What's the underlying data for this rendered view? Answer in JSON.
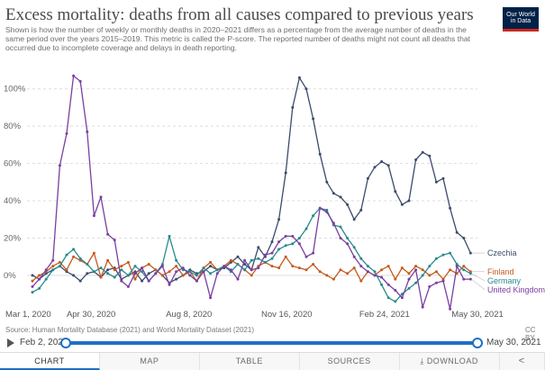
{
  "title": "Excess mortality: deaths from all causes compared to previous years",
  "subtitle": "Shown is how the number of weekly or monthly deaths in 2020–2021 differs as a percentage from the average number of deaths in the same period over the years 2015–2019. This metric is called the P-score. The reported number of deaths might not count all deaths that occurred due to incomplete coverage and delays in death reporting.",
  "logo": {
    "line1": "Our World",
    "line2": "in Data"
  },
  "source": "Source: Human Mortality Database (2021) and World Mortality Dataset (2021)",
  "license": "CC BY",
  "timeline": {
    "start": "Feb 2, 2020",
    "end": "May 30, 2021"
  },
  "tabs": {
    "chart": "CHART",
    "map": "MAP",
    "table": "TABLE",
    "sources": "SOURCES",
    "download": "DOWNLOAD"
  },
  "colors": {
    "Czechia": "#3b4c6b",
    "Finland": "#c55a1e",
    "Germany": "#2a8a8c",
    "United Kingdom": "#7b3fa0"
  },
  "chart_data": {
    "type": "line",
    "x_start": "2020-03-01",
    "x_end": "2021-05-30",
    "x_interval": "weekly",
    "ylim": [
      -15,
      110
    ],
    "yticks": [
      0,
      20,
      40,
      60,
      80,
      100
    ],
    "ytick_labels": [
      "0%",
      "20%",
      "40%",
      "60%",
      "80%",
      "100%"
    ],
    "xticks": [
      "Mar 1, 2020",
      "Apr 30, 2020",
      "Aug 8, 2020",
      "Nov 16, 2020",
      "Feb 24, 2021",
      "May 30, 2021"
    ],
    "grid": "horizontal dashed",
    "series": [
      {
        "name": "Czechia",
        "values": [
          0,
          -2,
          1,
          3,
          5,
          2,
          0,
          -3,
          1,
          2,
          -1,
          3,
          4,
          -2,
          0,
          2,
          -3,
          1,
          3,
          0,
          -4,
          -2,
          0,
          3,
          1,
          2,
          5,
          3,
          4,
          7,
          10,
          6,
          3,
          15,
          10,
          18,
          30,
          55,
          90,
          106,
          100,
          84,
          65,
          50,
          44,
          42,
          38,
          30,
          35,
          52,
          58,
          61,
          59,
          45,
          38,
          40,
          62,
          66,
          64,
          50,
          52,
          36,
          23,
          20,
          12
        ]
      },
      {
        "name": "Finland",
        "values": [
          -3,
          0,
          2,
          5,
          7,
          3,
          10,
          8,
          6,
          12,
          -1,
          8,
          3,
          5,
          7,
          -2,
          4,
          6,
          3,
          0,
          2,
          5,
          0,
          2,
          -3,
          4,
          7,
          3,
          5,
          8,
          6,
          3,
          0,
          5,
          7,
          5,
          4,
          10,
          5,
          4,
          3,
          6,
          2,
          0,
          -2,
          3,
          1,
          4,
          -3,
          2,
          0,
          3,
          5,
          -2,
          4,
          1,
          5,
          3,
          0,
          2,
          -2,
          3,
          1,
          5,
          2
        ]
      },
      {
        "name": "Germany",
        "values": [
          -9,
          -7,
          -2,
          3,
          5,
          11,
          14,
          9,
          6,
          2,
          4,
          1,
          -1,
          3,
          0,
          5,
          2,
          -3,
          1,
          6,
          21,
          8,
          3,
          2,
          0,
          4,
          1,
          3,
          5,
          2,
          6,
          3,
          8,
          9,
          7,
          9,
          14,
          16,
          17,
          20,
          25,
          32,
          36,
          35,
          27,
          26,
          20,
          15,
          9,
          5,
          2,
          -5,
          -12,
          -14,
          -10,
          -7,
          -4,
          0,
          5,
          9,
          11,
          12,
          6,
          3,
          1
        ]
      },
      {
        "name": "United Kingdom",
        "values": [
          -6,
          -2,
          3,
          8,
          59,
          76,
          107,
          104,
          77,
          32,
          42,
          22,
          19,
          -3,
          -6,
          1,
          4,
          -3,
          1,
          5,
          -5,
          2,
          4,
          0,
          -3,
          2,
          -12,
          1,
          5,
          3,
          -2,
          8,
          3,
          4,
          11,
          12,
          18,
          21,
          21,
          17,
          10,
          12,
          36,
          34,
          28,
          20,
          17,
          10,
          5,
          2,
          0,
          -1,
          -5,
          -8,
          -12,
          -2,
          3,
          -17,
          -6,
          -4,
          -3,
          -18,
          5,
          -2,
          -2
        ]
      }
    ]
  }
}
